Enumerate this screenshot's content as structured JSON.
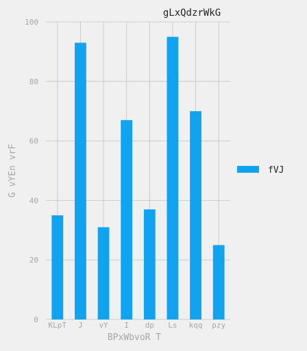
{
  "chart_data": {
    "type": "bar",
    "title": "gLxQdzrWkG",
    "xlabel": "BPxWbvoR T",
    "ylabel": "G vYEn vrF",
    "categories": [
      "KLpT",
      "J",
      "vY",
      "I",
      "dp",
      "Ls",
      "kqq",
      "pzy"
    ],
    "series": [
      {
        "name": "fVJ",
        "values": [
          35,
          93,
          31,
          67,
          37,
          95,
          70,
          25
        ]
      }
    ],
    "ylim": [
      0,
      100
    ],
    "yticks": [
      0,
      20,
      40,
      60,
      80,
      100
    ],
    "grid": true,
    "legend_position": "right",
    "colors": {
      "bar": "#10a3f0",
      "background": "#f0f0f0",
      "grid": "#cbcbcb"
    }
  }
}
